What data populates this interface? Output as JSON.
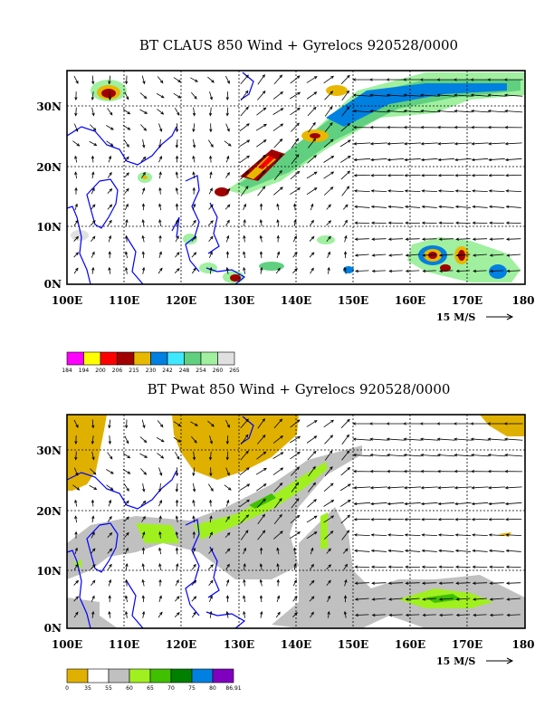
{
  "panels": [
    {
      "title": "BT CLAUS 850 Wind + Gyrelocs 920528/0000",
      "x_ticks": [
        "100E",
        "110E",
        "120E",
        "130E",
        "140E",
        "150E",
        "160E",
        "170E",
        "180"
      ],
      "y_ticks": [
        "0N",
        "10N",
        "20N",
        "30N"
      ],
      "scale_label": "15 M/S",
      "colorbar": {
        "colors": [
          "#ff00ff",
          "#ffff00",
          "#ff0000",
          "#a00000",
          "#e8b800",
          "#0080e0",
          "#40e8ff",
          "#60d080",
          "#a0f0a0",
          "#e0e0e0"
        ],
        "labels": [
          "184",
          "194",
          "200",
          "206",
          "215",
          "230",
          "242",
          "248",
          "254",
          "260",
          "265"
        ]
      }
    },
    {
      "title": "BT Pwat 850 Wind + Gyrelocs 920528/0000",
      "x_ticks": [
        "100E",
        "110E",
        "120E",
        "130E",
        "140E",
        "150E",
        "160E",
        "170E",
        "180"
      ],
      "y_ticks": [
        "0N",
        "10N",
        "20N",
        "30N"
      ],
      "scale_label": "15 M/S",
      "colorbar": {
        "colors": [
          "#e0b000",
          "#ffffff",
          "#c0c0c0",
          "#a0f020",
          "#40c000",
          "#008000",
          "#0080e0",
          "#8000c0"
        ],
        "labels": [
          "0",
          "35",
          "55",
          "60",
          "65",
          "70",
          "75",
          "80",
          "86.91"
        ]
      }
    }
  ],
  "colors": {
    "coastline": "#0000ff",
    "frame": "#000000"
  }
}
